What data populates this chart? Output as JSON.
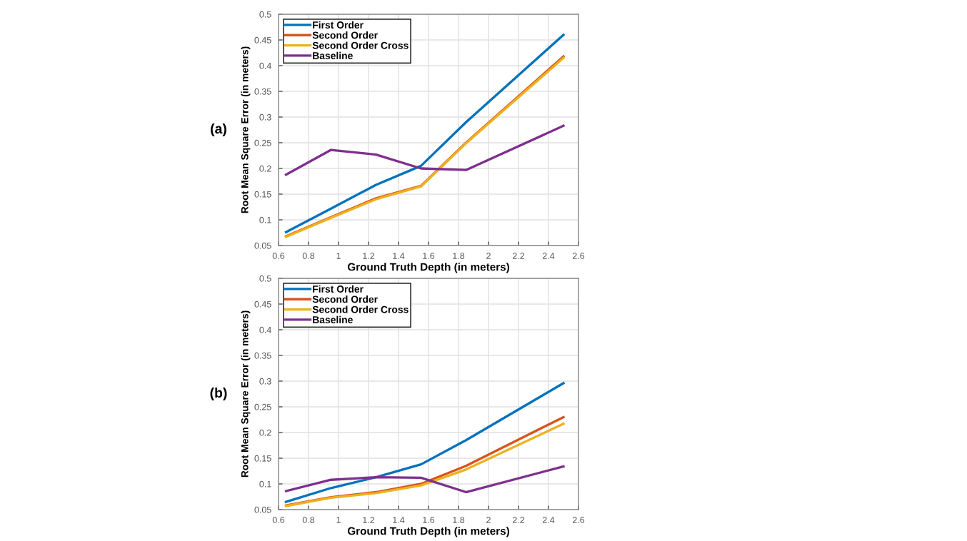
{
  "chart_data": [
    {
      "type": "line",
      "xlabel": "Ground Truth Depth (in meters)",
      "ylabel": "Root Mean Square Error (in meters)",
      "annotations": [
        "(a)"
      ],
      "x": [
        0.65,
        0.95,
        1.25,
        1.55,
        1.85,
        2.5
      ],
      "series": [
        {
          "name": "First Order",
          "color": "#0072bd",
          "values": [
            0.076,
            0.122,
            0.168,
            0.205,
            0.29,
            0.46
          ]
        },
        {
          "name": "Second Order",
          "color": "#d95319",
          "values": [
            0.068,
            0.105,
            0.142,
            0.166,
            0.25,
            0.418
          ]
        },
        {
          "name": "Second Order Cross",
          "color": "#edb120",
          "values": [
            0.067,
            0.104,
            0.14,
            0.165,
            0.249,
            0.415
          ]
        },
        {
          "name": "Baseline",
          "color": "#7e2f8e",
          "values": [
            0.188,
            0.236,
            0.227,
            0.2,
            0.197,
            0.283
          ]
        }
      ],
      "xlim": [
        0.6,
        2.6
      ],
      "xticks": [
        0.6,
        0.8,
        1,
        1.2,
        1.4,
        1.6,
        1.8,
        2,
        2.2,
        2.4,
        2.6
      ],
      "ylim": [
        0.05,
        0.5
      ],
      "yticks": [
        0.05,
        0.1,
        0.15,
        0.2,
        0.25,
        0.3,
        0.35,
        0.4,
        0.45,
        0.5
      ],
      "grid": true,
      "legend": "top left",
      "line_style": "solid",
      "marker": "none"
    },
    {
      "type": "line",
      "xlabel": "Ground Truth Depth (in meters)",
      "ylabel": "Root Mean Square Error (in meters)",
      "annotations": [
        "(b)"
      ],
      "x": [
        0.65,
        0.95,
        1.25,
        1.55,
        1.85,
        2.5
      ],
      "series": [
        {
          "name": "First Order",
          "color": "#0072bd",
          "values": [
            0.065,
            0.092,
            0.113,
            0.138,
            0.185,
            0.296
          ]
        },
        {
          "name": "Second Order",
          "color": "#d95319",
          "values": [
            0.058,
            0.074,
            0.084,
            0.1,
            0.135,
            0.23
          ]
        },
        {
          "name": "Second Order Cross",
          "color": "#edb120",
          "values": [
            0.057,
            0.073,
            0.082,
            0.097,
            0.128,
            0.217
          ]
        },
        {
          "name": "Baseline",
          "color": "#7e2f8e",
          "values": [
            0.086,
            0.108,
            0.113,
            0.112,
            0.084,
            0.134
          ]
        }
      ],
      "xlim": [
        0.6,
        2.6
      ],
      "xticks": [
        0.6,
        0.8,
        1,
        1.2,
        1.4,
        1.6,
        1.8,
        2,
        2.2,
        2.4,
        2.6
      ],
      "ylim": [
        0.05,
        0.5
      ],
      "yticks": [
        0.05,
        0.1,
        0.15,
        0.2,
        0.25,
        0.3,
        0.35,
        0.4,
        0.45,
        0.5
      ],
      "grid": true,
      "legend": "top left",
      "line_style": "solid",
      "marker": "none"
    }
  ]
}
